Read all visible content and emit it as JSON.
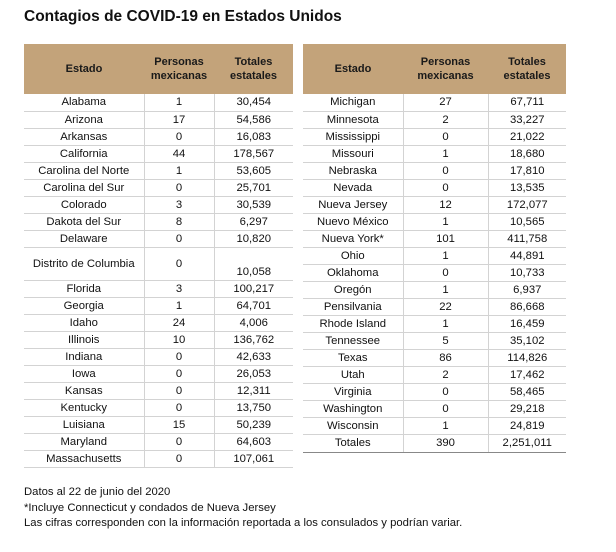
{
  "title": "Contagios de COVID-19 en Estados Unidos",
  "headers": [
    "Estado",
    "Personas mexicanas",
    "Totales estatales"
  ],
  "left_rows": [
    {
      "state": "Alabama",
      "mex": "1",
      "total": "30,454"
    },
    {
      "state": "Arizona",
      "mex": "17",
      "total": "54,586"
    },
    {
      "state": "Arkansas",
      "mex": "0",
      "total": "16,083"
    },
    {
      "state": "California",
      "mex": "44",
      "total": "178,567"
    },
    {
      "state": "Carolina del Norte",
      "mex": "1",
      "total": "53,605"
    },
    {
      "state": "Carolina del Sur",
      "mex": "0",
      "total": "25,701"
    },
    {
      "state": "Colorado",
      "mex": "3",
      "total": "30,539"
    },
    {
      "state": "Dakota del Sur",
      "mex": "8",
      "total": "6,297"
    },
    {
      "state": "Delaware",
      "mex": "0",
      "total": "10,820"
    },
    {
      "state": "Distrito de Columbia",
      "mex": "0",
      "total": "10,058"
    },
    {
      "state": "Florida",
      "mex": "3",
      "total": "100,217"
    },
    {
      "state": "Georgia",
      "mex": "1",
      "total": "64,701"
    },
    {
      "state": "Idaho",
      "mex": "24",
      "total": "4,006"
    },
    {
      "state": "Illinois",
      "mex": "10",
      "total": "136,762"
    },
    {
      "state": "Indiana",
      "mex": "0",
      "total": "42,633"
    },
    {
      "state": "Iowa",
      "mex": "0",
      "total": "26,053"
    },
    {
      "state": "Kansas",
      "mex": "0",
      "total": "12,311"
    },
    {
      "state": "Kentucky",
      "mex": "0",
      "total": "13,750"
    },
    {
      "state": "Luisiana",
      "mex": "15",
      "total": "50,239"
    },
    {
      "state": "Maryland",
      "mex": "0",
      "total": "64,603"
    },
    {
      "state": "Massachusetts",
      "mex": "0",
      "total": "107,061"
    }
  ],
  "right_rows": [
    {
      "state": "Michigan",
      "mex": "27",
      "total": "67,711"
    },
    {
      "state": "Minnesota",
      "mex": "2",
      "total": "33,227"
    },
    {
      "state": "Mississippi",
      "mex": "0",
      "total": "21,022"
    },
    {
      "state": "Missouri",
      "mex": "1",
      "total": "18,680"
    },
    {
      "state": "Nebraska",
      "mex": "0",
      "total": "17,810"
    },
    {
      "state": "Nevada",
      "mex": "0",
      "total": "13,535"
    },
    {
      "state": "Nueva Jersey",
      "mex": "12",
      "total": "172,077"
    },
    {
      "state": "Nuevo México",
      "mex": "1",
      "total": "10,565"
    },
    {
      "state": "Nueva York*",
      "mex": "101",
      "total": "411,758"
    },
    {
      "state": "Ohio",
      "mex": "1",
      "total": "44,891"
    },
    {
      "state": "Oklahoma",
      "mex": "0",
      "total": "10,733"
    },
    {
      "state": "Oregón",
      "mex": "1",
      "total": "6,937"
    },
    {
      "state": "Pensilvania",
      "mex": "22",
      "total": "86,668"
    },
    {
      "state": "Rhode Island",
      "mex": "1",
      "total": "16,459"
    },
    {
      "state": "Tennessee",
      "mex": "5",
      "total": "35,102"
    },
    {
      "state": "Texas",
      "mex": "86",
      "total": "114,826"
    },
    {
      "state": "Utah",
      "mex": "2",
      "total": "17,462"
    },
    {
      "state": "Virginia",
      "mex": "0",
      "total": "58,465"
    },
    {
      "state": "Washington",
      "mex": "0",
      "total": "29,218"
    },
    {
      "state": "Wisconsin",
      "mex": "1",
      "total": "24,819"
    }
  ],
  "totals": {
    "label": "Totales",
    "mex": "390",
    "total": "2,251,011"
  },
  "notes": [
    "Datos al 22 de junio del 2020",
    "*Incluye Connecticut y condados de Nueva Jersey",
    "Las cifras corresponden con la información reportada a los consulados y podrían variar."
  ],
  "colors": {
    "header_bg": "#c3a37a",
    "rule": "#d3d3d3"
  }
}
